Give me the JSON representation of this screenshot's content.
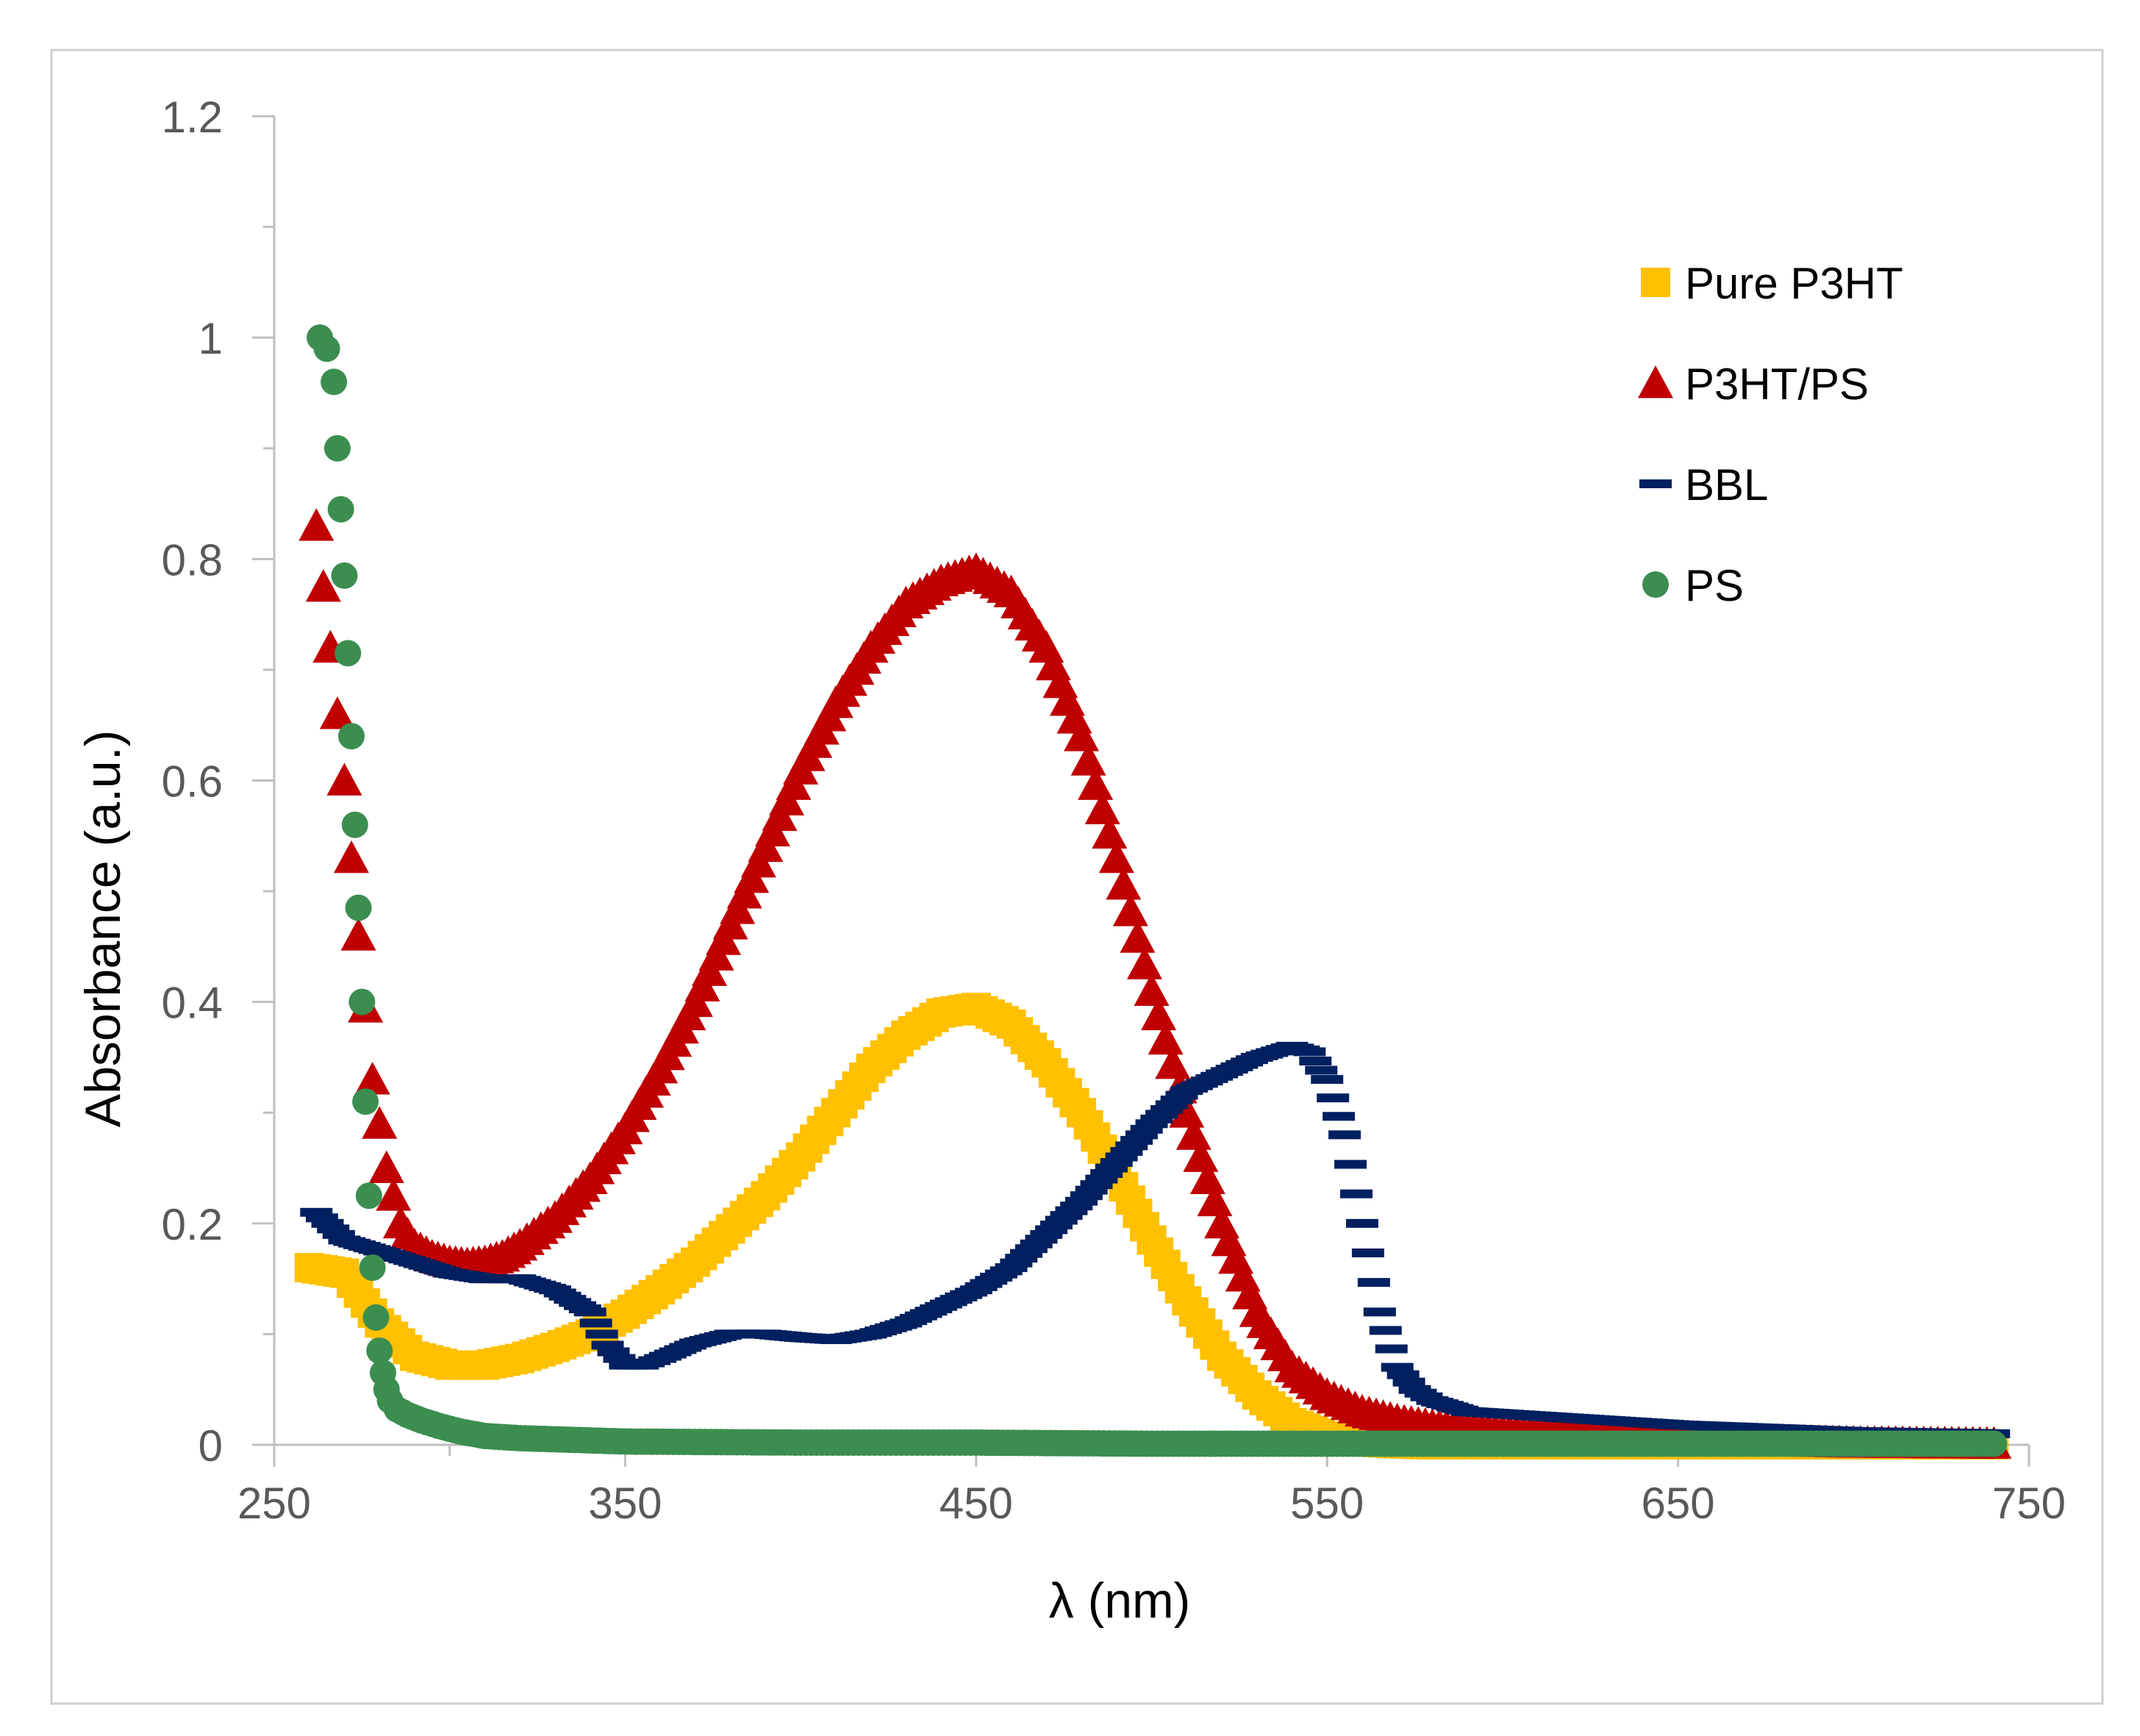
{
  "chart_data": {
    "type": "scatter",
    "title": "",
    "xlabel": "λ (nm)",
    "ylabel": "Absorbance (a.u.)",
    "xlim": [
      250,
      750
    ],
    "ylim": [
      0,
      1.2
    ],
    "x_ticks": [
      250,
      350,
      450,
      550,
      650,
      750
    ],
    "x_tick_labels": [
      "250",
      "350",
      "450",
      "550",
      "650",
      "750"
    ],
    "y_ticks": [
      0,
      0.2,
      0.4,
      0.6,
      0.8,
      1,
      1.2
    ],
    "y_tick_labels": [
      "0",
      "0.2",
      "0.4",
      "0.6",
      "0.8",
      "1",
      "1.2"
    ],
    "grid": false,
    "legend_position": "top-right",
    "series": [
      {
        "name": "Pure P3HT",
        "marker": "square",
        "color": "#FFC000",
        "x": [
          260,
          270,
          280,
          290,
          300,
          310,
          320,
          330,
          340,
          350,
          360,
          370,
          380,
          390,
          400,
          410,
          420,
          430,
          440,
          450,
          460,
          470,
          480,
          490,
          500,
          510,
          520,
          530,
          540,
          550,
          560,
          570,
          580,
          600,
          650,
          700,
          740
        ],
        "y": [
          0.16,
          0.155,
          0.11,
          0.08,
          0.072,
          0.072,
          0.078,
          0.088,
          0.1,
          0.118,
          0.14,
          0.165,
          0.195,
          0.225,
          0.26,
          0.3,
          0.34,
          0.37,
          0.39,
          0.395,
          0.38,
          0.345,
          0.3,
          0.245,
          0.185,
          0.13,
          0.08,
          0.045,
          0.02,
          0.008,
          0.003,
          0.001,
          0,
          0,
          0,
          0,
          0
        ]
      },
      {
        "name": "P3HT/PS",
        "marker": "triangle",
        "color": "#C00000",
        "x": [
          262,
          266,
          270,
          274,
          278,
          282,
          286,
          290,
          295,
          300,
          305,
          310,
          315,
          320,
          330,
          340,
          350,
          360,
          370,
          380,
          390,
          400,
          410,
          420,
          430,
          440,
          450,
          460,
          470,
          480,
          490,
          500,
          510,
          520,
          530,
          540,
          550,
          560,
          570,
          580,
          600,
          650,
          700,
          740
        ],
        "y": [
          0.83,
          0.72,
          0.6,
          0.46,
          0.33,
          0.25,
          0.2,
          0.18,
          0.17,
          0.165,
          0.163,
          0.165,
          0.17,
          0.18,
          0.205,
          0.24,
          0.285,
          0.34,
          0.4,
          0.47,
          0.54,
          0.61,
          0.67,
          0.72,
          0.76,
          0.78,
          0.79,
          0.77,
          0.72,
          0.64,
          0.53,
          0.41,
          0.3,
          0.2,
          0.12,
          0.07,
          0.045,
          0.03,
          0.022,
          0.017,
          0.012,
          0.005,
          0.002,
          0.001
        ]
      },
      {
        "name": "BBL",
        "marker": "dash",
        "color": "#002060",
        "x": [
          262,
          270,
          280,
          290,
          300,
          310,
          320,
          330,
          340,
          345,
          350,
          355,
          360,
          370,
          380,
          390,
          400,
          410,
          420,
          430,
          440,
          450,
          460,
          470,
          480,
          490,
          500,
          510,
          520,
          530,
          540,
          545,
          550,
          555,
          560,
          565,
          570,
          575,
          580,
          590,
          600,
          620,
          650,
          700,
          740
        ],
        "y": [
          0.21,
          0.185,
          0.175,
          0.165,
          0.155,
          0.15,
          0.15,
          0.14,
          0.12,
          0.09,
          0.072,
          0.072,
          0.078,
          0.092,
          0.1,
          0.1,
          0.097,
          0.095,
          0.1,
          0.11,
          0.125,
          0.14,
          0.16,
          0.19,
          0.22,
          0.255,
          0.29,
          0.32,
          0.335,
          0.35,
          0.36,
          0.355,
          0.33,
          0.28,
          0.2,
          0.12,
          0.07,
          0.05,
          0.04,
          0.03,
          0.028,
          0.024,
          0.018,
          0.012,
          0.01
        ]
      },
      {
        "name": "PS",
        "marker": "circle",
        "color": "#3B8E50",
        "x": [
          263,
          265,
          267,
          268,
          269,
          270,
          271,
          272,
          273,
          274,
          275,
          276,
          277,
          278,
          279,
          280,
          281,
          282,
          283,
          285,
          288,
          292,
          297,
          303,
          310,
          320,
          330,
          340,
          350,
          400,
          450,
          500,
          550,
          600,
          650,
          700,
          740
        ],
        "y": [
          1.0,
          0.99,
          0.96,
          0.9,
          0.845,
          0.785,
          0.715,
          0.64,
          0.56,
          0.485,
          0.4,
          0.31,
          0.225,
          0.16,
          0.115,
          0.085,
          0.065,
          0.05,
          0.04,
          0.032,
          0.027,
          0.022,
          0.017,
          0.012,
          0.008,
          0.006,
          0.005,
          0.004,
          0.003,
          0.002,
          0.002,
          0.001,
          0.001,
          0.001,
          0.001,
          0.001,
          0.001
        ]
      }
    ]
  }
}
